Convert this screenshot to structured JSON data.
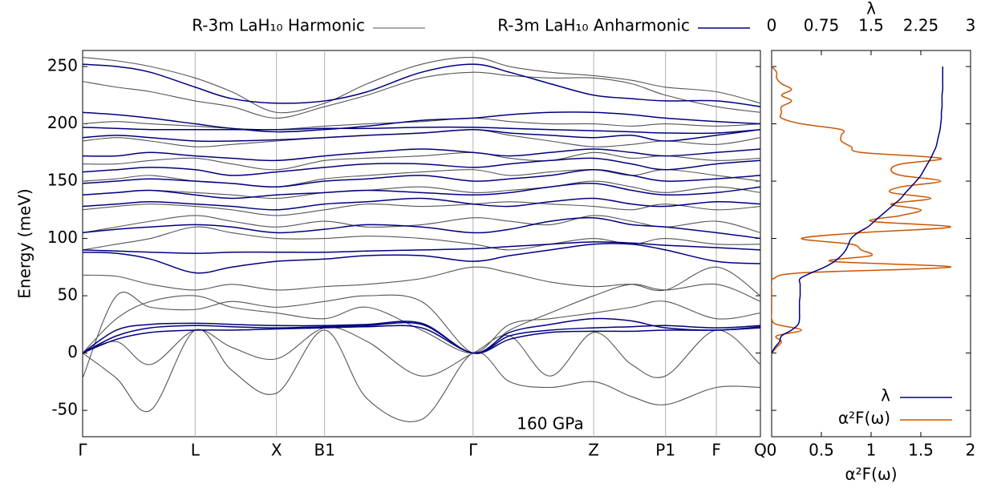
{
  "chart_data": [
    {
      "type": "line",
      "legend_position": "top",
      "annotation": "160 GPa",
      "ylabel": "Energy (meV)",
      "grid": "x",
      "xlim": [
        0,
        1
      ],
      "xticks": [
        {
          "value": 0,
          "label": "Γ"
        },
        {
          "value": 0.166,
          "label": "L"
        },
        {
          "value": 0.286,
          "label": "X"
        },
        {
          "value": 0.357,
          "label": "B1"
        },
        {
          "value": 0.576,
          "label": "Γ"
        },
        {
          "value": 0.754,
          "label": "Z"
        },
        {
          "value": 0.86,
          "label": "P1"
        },
        {
          "value": 0.935,
          "label": "F"
        },
        {
          "value": 1,
          "label": "Q"
        }
      ],
      "ylim": [
        -73,
        264
      ],
      "yticks": [
        -50,
        0,
        50,
        100,
        150,
        200,
        250
      ],
      "x": [
        0,
        0.05,
        0.1,
        0.166,
        0.22,
        0.286,
        0.357,
        0.42,
        0.5,
        0.576,
        0.63,
        0.69,
        0.754,
        0.81,
        0.86,
        0.935,
        1
      ],
      "series": [
        {
          "name": "R-3m LaH₁₀ Harmonic",
          "color": "#555555",
          "bands": [
            [
              0,
              -22,
              -50,
              20,
              -15,
              -35,
              20,
              -40,
              -58,
              0,
              -25,
              -30,
              -25,
              -38,
              -45,
              -30,
              -30
            ],
            [
              0,
              10,
              -10,
              20,
              5,
              -5,
              22,
              10,
              -20,
              0,
              15,
              -20,
              18,
              -10,
              -20,
              20,
              -10
            ],
            [
              0,
              30,
              45,
              50,
              40,
              35,
              30,
              40,
              20,
              0,
              25,
              30,
              35,
              40,
              45,
              30,
              35
            ],
            [
              -22,
              50,
              40,
              38,
              45,
              40,
              45,
              50,
              45,
              0,
              20,
              35,
              50,
              60,
              55,
              60,
              45
            ],
            [
              68,
              67,
              60,
              55,
              60,
              55,
              58,
              60,
              65,
              75,
              70,
              62,
              58,
              60,
              55,
              75,
              50
            ],
            [
              90,
              95,
              100,
              110,
              105,
              100,
              100,
              102,
              100,
              95,
              90,
              95,
              100,
              95,
              100,
              95,
              95
            ],
            [
              105,
              110,
              115,
              120,
              115,
              110,
              115,
              110,
              112,
              118,
              115,
              112,
              120,
              115,
              110,
              115,
              105
            ],
            [
              125,
              128,
              130,
              128,
              125,
              120,
              125,
              130,
              128,
              130,
              132,
              130,
              128,
              125,
              130,
              125,
              128
            ],
            [
              138,
              140,
              142,
              140,
              138,
              135,
              140,
              142,
              145,
              140,
              142,
              145,
              150,
              145,
              140,
              145,
              140
            ],
            [
              150,
              152,
              155,
              150,
              148,
              145,
              152,
              155,
              158,
              160,
              155,
              158,
              160,
              155,
              160,
              155,
              150
            ],
            [
              165,
              165,
              168,
              170,
              165,
              160,
              168,
              170,
              172,
              175,
              170,
              168,
              175,
              170,
              172,
              168,
              170
            ],
            [
              185,
              188,
              185,
              180,
              182,
              185,
              188,
              190,
              192,
              195,
              190,
              185,
              180,
              182,
              185,
              182,
              188
            ],
            [
              200,
              202,
              200,
              198,
              196,
              195,
              198,
              200,
              202,
              205,
              202,
              200,
              200,
              198,
              200,
              198,
              200
            ],
            [
              237,
              232,
              228,
              220,
              215,
              205,
              215,
              225,
              240,
              245,
              242,
              240,
              240,
              235,
              225,
              215,
              210
            ],
            [
              258,
              255,
              250,
              240,
              228,
              210,
              218,
              235,
              252,
              258,
              250,
              245,
              242,
              238,
              232,
              228,
              218
            ]
          ]
        },
        {
          "name": "R-3m LaH₁₀ Anharmonic",
          "color": "#00007f",
          "bands": [
            [
              0,
              12,
              18,
              20,
              20,
              21,
              22,
              23,
              22,
              0,
              12,
              18,
              19,
              19,
              20,
              20,
              22
            ],
            [
              0,
              15,
              22,
              24,
              23,
              22,
              23,
              24,
              25,
              0,
              15,
              20,
              22,
              23,
              24,
              22,
              24
            ],
            [
              0,
              20,
              25,
              26,
              25,
              24,
              24,
              25,
              26,
              0,
              18,
              25,
              30,
              28,
              22,
              20,
              23
            ],
            [
              88,
              87,
              82,
              70,
              75,
              80,
              82,
              85,
              85,
              80,
              85,
              90,
              95,
              95,
              90,
              80,
              78
            ],
            [
              90,
              89,
              88,
              87,
              88,
              88,
              88,
              89,
              90,
              91,
              93,
              95,
              97,
              96,
              94,
              92,
              90
            ],
            [
              105,
              108,
              110,
              112,
              110,
              105,
              108,
              112,
              110,
              105,
              108,
              115,
              118,
              112,
              110,
              105,
              100
            ],
            [
              128,
              130,
              132,
              130,
              128,
              125,
              130,
              132,
              135,
              130,
              128,
              132,
              135,
              130,
              128,
              132,
              130
            ],
            [
              138,
              140,
              142,
              138,
              135,
              138,
              140,
              142,
              140,
              138,
              140,
              145,
              148,
              142,
              138,
              140,
              145
            ],
            [
              148,
              150,
              152,
              150,
              148,
              145,
              150,
              152,
              155,
              150,
              152,
              155,
              160,
              155,
              150,
              152,
              155
            ],
            [
              158,
              160,
              162,
              160,
              155,
              158,
              162,
              165,
              165,
              162,
              165,
              168,
              170,
              165,
              160,
              165,
              168
            ],
            [
              172,
              172,
              175,
              172,
              170,
              168,
              172,
              175,
              178,
              175,
              172,
              175,
              178,
              175,
              172,
              175,
              178
            ],
            [
              188,
              190,
              188,
              185,
              185,
              186,
              188,
              190,
              192,
              195,
              192,
              190,
              188,
              190,
              185,
              190,
              195
            ],
            [
              197,
              196,
              195,
              195,
              195,
              195,
              196,
              196,
              197,
              197,
              196,
              195,
              194,
              193,
              192,
              192,
              195
            ],
            [
              210,
              208,
              205,
              200,
              196,
              193,
              195,
              198,
              203,
              205,
              208,
              210,
              210,
              208,
              205,
              202,
              200
            ],
            [
              252,
              250,
              245,
              232,
              222,
              218,
              220,
              228,
              245,
              252,
              245,
              235,
              225,
              222,
              220,
              220,
              215
            ]
          ]
        }
      ]
    },
    {
      "type": "line",
      "orientation": "horizontal",
      "legend_position": "lower right",
      "xlabel": "α²F(ω)",
      "x2label": "λ",
      "xlim": [
        0,
        2
      ],
      "xticks": [
        0,
        0.5,
        1,
        1.5,
        2
      ],
      "x2lim": [
        0,
        3
      ],
      "x2ticks": [
        0,
        0.75,
        1.5,
        2.25,
        3
      ],
      "energy": [
        0,
        5,
        10,
        15,
        20,
        25,
        30,
        35,
        40,
        45,
        50,
        55,
        60,
        65,
        70,
        75,
        80,
        85,
        90,
        95,
        100,
        105,
        110,
        115,
        120,
        125,
        130,
        135,
        140,
        145,
        150,
        155,
        160,
        165,
        170,
        175,
        180,
        185,
        190,
        195,
        200,
        205,
        210,
        215,
        220,
        225,
        230,
        235,
        240,
        245,
        250
      ],
      "series": [
        {
          "name": "λ",
          "color": "#00007f",
          "axis": "x2",
          "values": [
            0,
            0.05,
            0.12,
            0.15,
            0.3,
            0.4,
            0.42,
            0.42,
            0.42,
            0.42,
            0.43,
            0.43,
            0.43,
            0.43,
            0.6,
            0.8,
            0.95,
            1.05,
            1.12,
            1.16,
            1.2,
            1.3,
            1.45,
            1.55,
            1.65,
            1.75,
            1.85,
            1.95,
            2.02,
            2.1,
            2.18,
            2.25,
            2.3,
            2.35,
            2.4,
            2.44,
            2.48,
            2.5,
            2.52,
            2.54,
            2.55,
            2.56,
            2.56,
            2.57,
            2.57,
            2.57,
            2.58,
            2.58,
            2.58,
            2.58,
            2.58
          ]
        },
        {
          "name": "α²F(ω)",
          "color": "#cc5500",
          "values": [
            0,
            0.05,
            0.1,
            0.05,
            0.3,
            0.05,
            0,
            0,
            0,
            0,
            0,
            0,
            0,
            0.02,
            0.3,
            1.8,
            0.6,
            1.0,
            0.9,
            0.8,
            0.3,
            0.9,
            1.8,
            1.0,
            1.3,
            1.5,
            1.2,
            1.6,
            1.2,
            1.3,
            1.7,
            1.3,
            1.2,
            1.3,
            1.7,
            0.9,
            0.8,
            0.7,
            0.7,
            0.7,
            0.3,
            0.1,
            0.1,
            0.1,
            0.2,
            0.1,
            0.2,
            0.1,
            0.05,
            0.05,
            0
          ]
        }
      ]
    }
  ]
}
